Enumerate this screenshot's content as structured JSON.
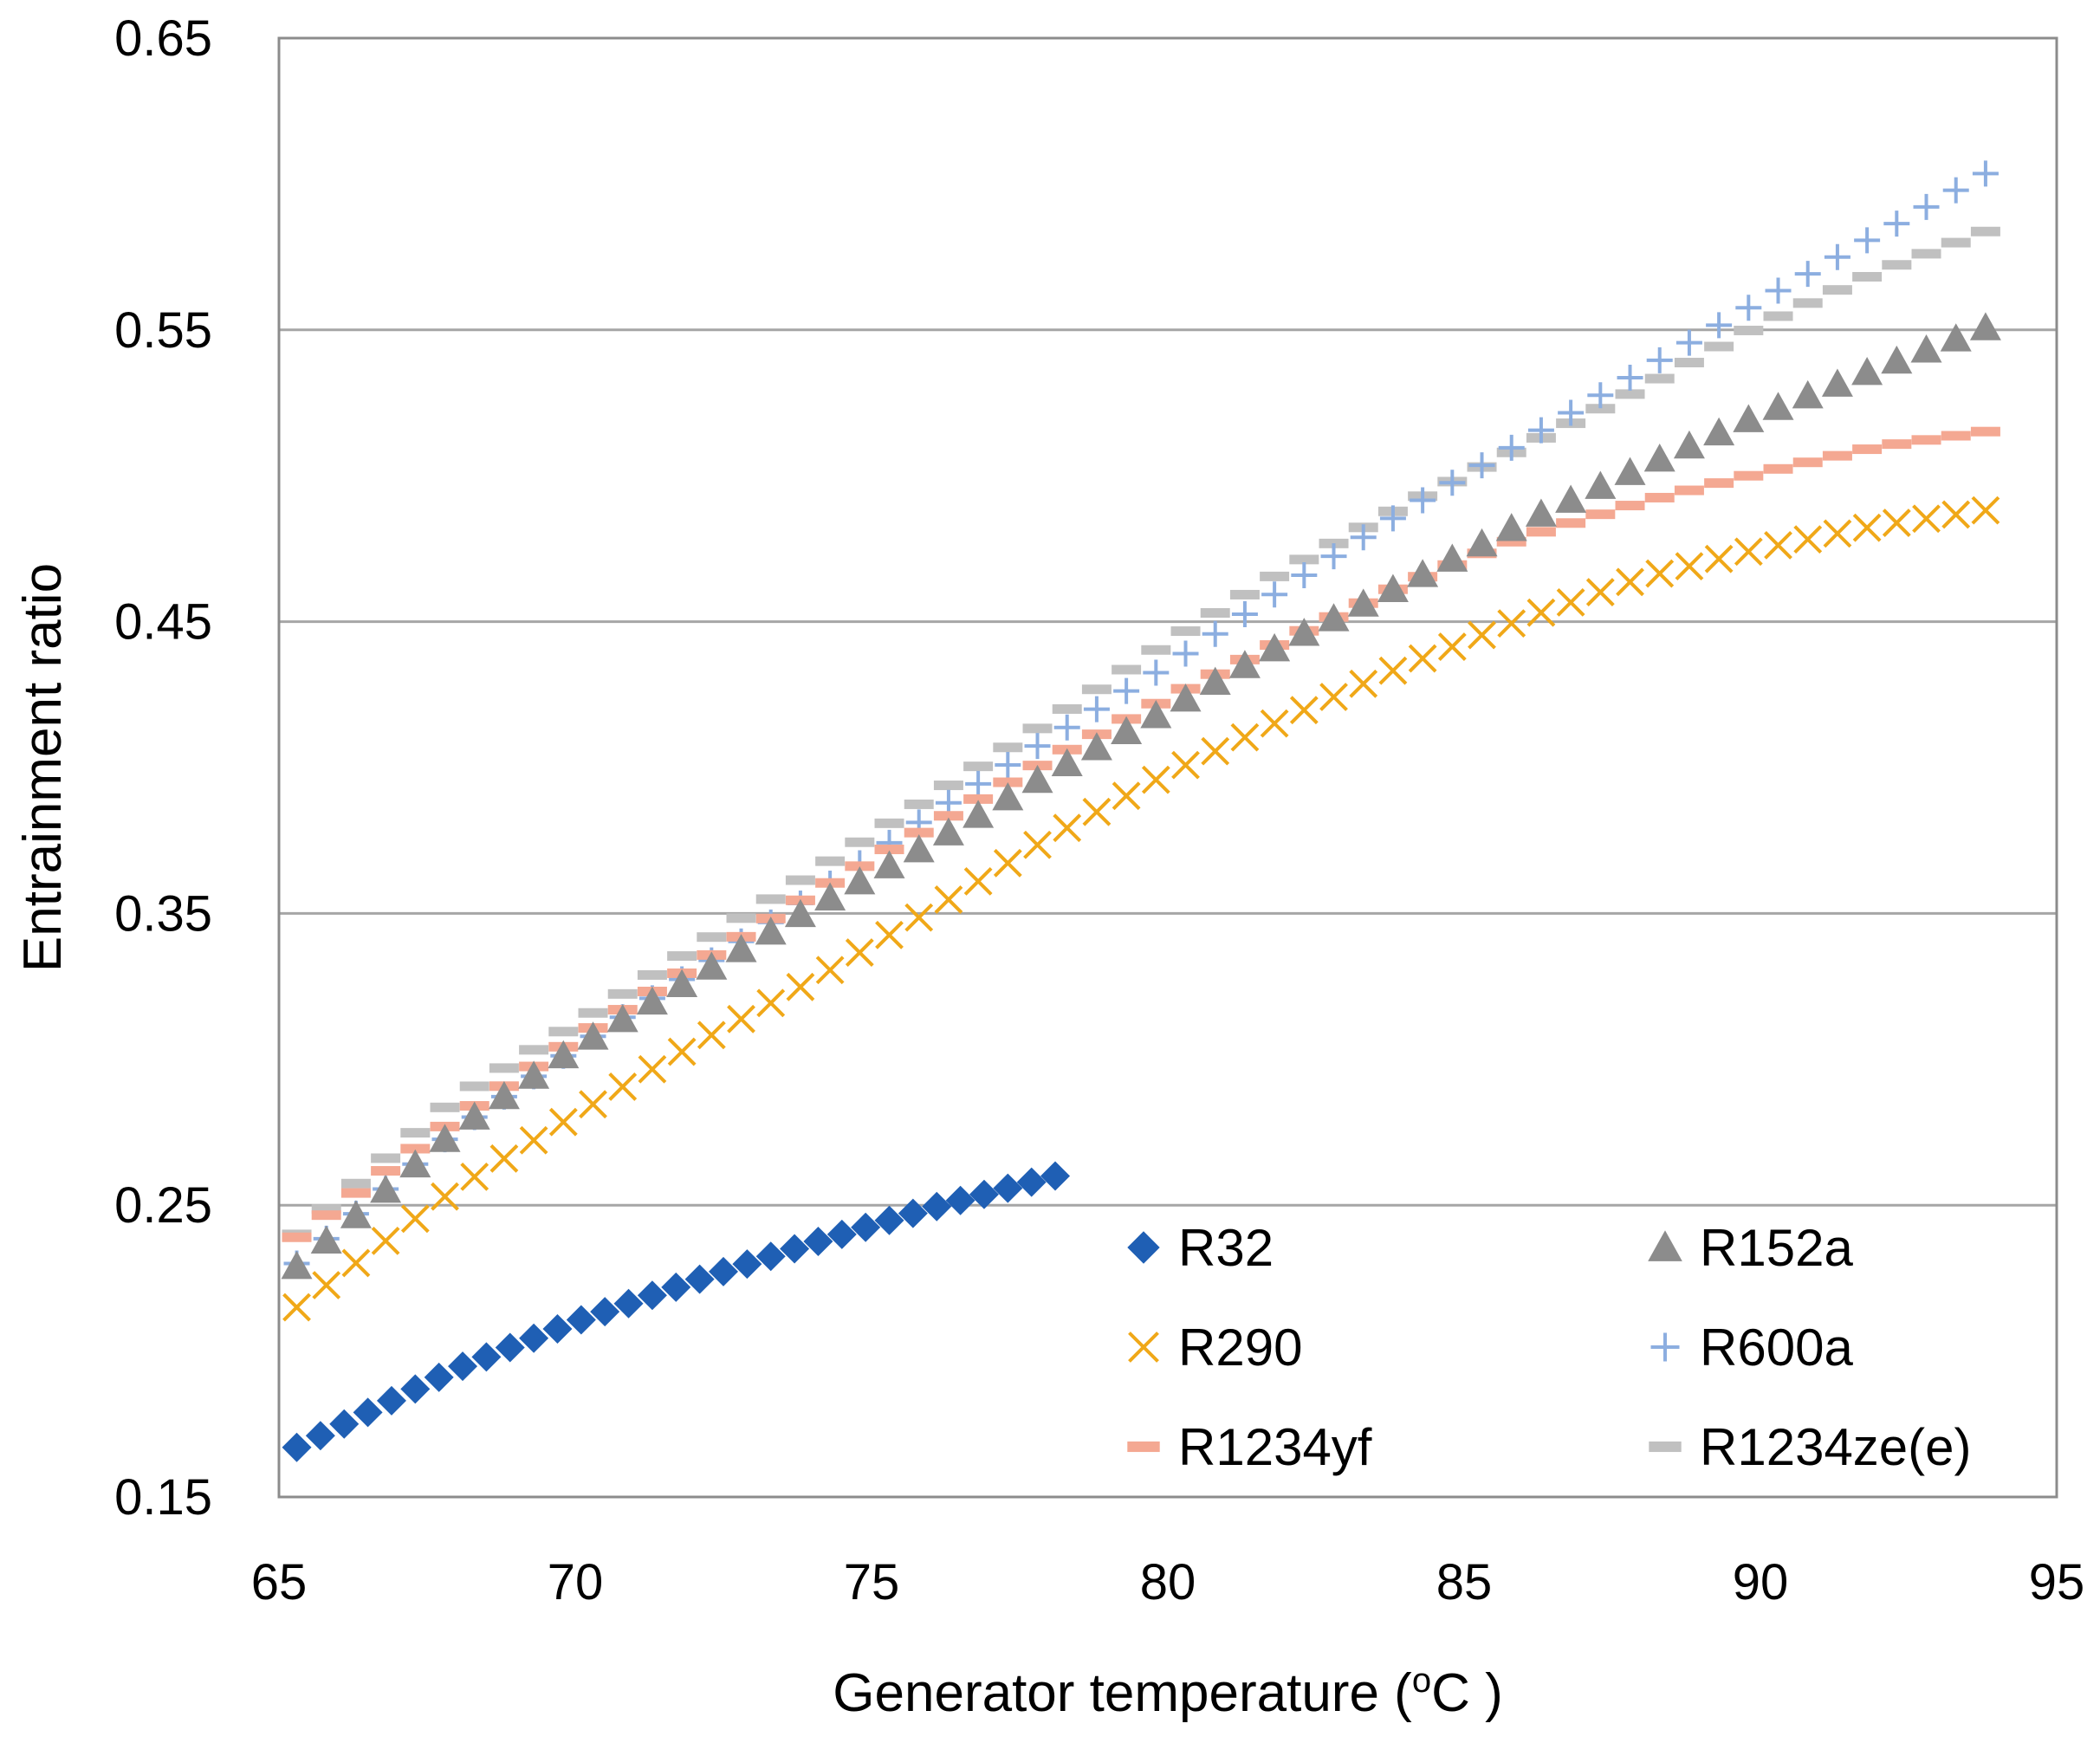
{
  "chart_data": {
    "type": "scatter",
    "xlabel": "Generator temperature (",
    "xlabel_sup": "o",
    "xlabel_unit": "C )",
    "ylabel": "Entrainment ratio",
    "xlim": [
      65,
      95
    ],
    "ylim": [
      0.15,
      0.65
    ],
    "x_ticks": [
      "65",
      "70",
      "75",
      "80",
      "85",
      "90",
      "95"
    ],
    "y_ticks": [
      "0.15",
      "0.25",
      "0.35",
      "0.45",
      "0.55",
      "0.65"
    ],
    "grid": "horizontal",
    "legend_placement": "bottom-right",
    "series": [
      {
        "name": "R32",
        "marker": "diamond",
        "color": "#1f5fb4",
        "x_start": 65.3,
        "x_end": 78.1,
        "step": 0.4,
        "points": [
          [
            65.3,
            0.167
          ],
          [
            68,
            0.194
          ],
          [
            70,
            0.21
          ],
          [
            72,
            0.224
          ],
          [
            74,
            0.237
          ],
          [
            76,
            0.249
          ],
          [
            78.1,
            0.26
          ]
        ]
      },
      {
        "name": "R152a",
        "marker": "triangle",
        "color": "#8c8c8c",
        "x_start": 65.3,
        "x_end": 94.1,
        "step": 0.5,
        "points": [
          [
            65.3,
            0.229
          ],
          [
            68,
            0.276
          ],
          [
            70,
            0.304
          ],
          [
            72,
            0.328
          ],
          [
            74,
            0.352
          ],
          [
            76,
            0.374
          ],
          [
            78,
            0.398
          ],
          [
            80,
            0.42
          ],
          [
            82,
            0.443
          ],
          [
            84,
            0.463
          ],
          [
            86,
            0.484
          ],
          [
            88,
            0.503
          ],
          [
            90,
            0.521
          ],
          [
            92,
            0.537
          ],
          [
            94.1,
            0.553
          ]
        ]
      },
      {
        "name": "R290",
        "marker": "x",
        "color": "#f0a818",
        "x_start": 65.3,
        "x_end": 94.1,
        "step": 0.5,
        "points": [
          [
            65.3,
            0.215
          ],
          [
            68,
            0.256
          ],
          [
            70,
            0.281
          ],
          [
            72,
            0.305
          ],
          [
            74,
            0.327
          ],
          [
            76,
            0.351
          ],
          [
            78,
            0.376
          ],
          [
            80,
            0.398
          ],
          [
            82,
            0.417
          ],
          [
            84,
            0.435
          ],
          [
            86,
            0.451
          ],
          [
            88,
            0.465
          ],
          [
            90,
            0.475
          ],
          [
            92,
            0.483
          ],
          [
            94.1,
            0.489
          ]
        ]
      },
      {
        "name": "R600a",
        "marker": "plus",
        "color": "#8caee0",
        "x_start": 65.3,
        "x_end": 94.1,
        "step": 0.5,
        "points": [
          [
            65.3,
            0.23
          ],
          [
            68,
            0.276
          ],
          [
            70,
            0.304
          ],
          [
            72,
            0.33
          ],
          [
            74,
            0.356
          ],
          [
            76,
            0.384
          ],
          [
            78,
            0.41
          ],
          [
            80,
            0.435
          ],
          [
            82,
            0.462
          ],
          [
            84,
            0.488
          ],
          [
            86,
            0.512
          ],
          [
            88,
            0.536
          ],
          [
            90,
            0.56
          ],
          [
            92,
            0.583
          ],
          [
            94.1,
            0.607
          ]
        ]
      },
      {
        "name": "R1234yf",
        "marker": "dash",
        "color": "#f4a892",
        "x_start": 65.3,
        "x_end": 94.1,
        "step": 0.5,
        "points": [
          [
            65.3,
            0.239
          ],
          [
            68,
            0.28
          ],
          [
            70,
            0.307
          ],
          [
            72,
            0.332
          ],
          [
            74,
            0.357
          ],
          [
            76,
            0.38
          ],
          [
            78,
            0.403
          ],
          [
            80,
            0.424
          ],
          [
            82,
            0.444
          ],
          [
            84,
            0.463
          ],
          [
            86,
            0.479
          ],
          [
            88,
            0.491
          ],
          [
            90,
            0.501
          ],
          [
            92,
            0.51
          ],
          [
            94.1,
            0.516
          ]
        ]
      },
      {
        "name": "R1234ze(e)",
        "marker": "dash",
        "color": "#c0c0c0",
        "x_start": 65.3,
        "x_end": 94.1,
        "step": 0.5,
        "points": [
          [
            65.3,
            0.24
          ],
          [
            68,
            0.287
          ],
          [
            70,
            0.312
          ],
          [
            72,
            0.338
          ],
          [
            74,
            0.364
          ],
          [
            76,
            0.39
          ],
          [
            78,
            0.416
          ],
          [
            80,
            0.443
          ],
          [
            82,
            0.468
          ],
          [
            84,
            0.49
          ],
          [
            86,
            0.51
          ],
          [
            88,
            0.53
          ],
          [
            90,
            0.552
          ],
          [
            92,
            0.57
          ],
          [
            94.1,
            0.586
          ]
        ]
      }
    ]
  }
}
